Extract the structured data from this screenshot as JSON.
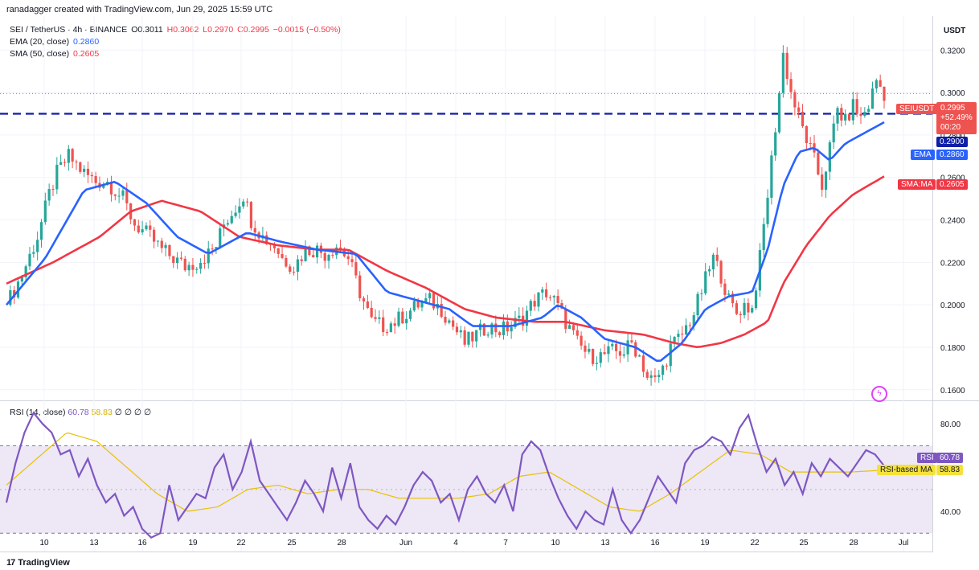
{
  "header": {
    "attribution": "ranadagger created with TradingView.com, Jun 29, 2025 15:59 UTC"
  },
  "legend": {
    "symbol_line": "SEI / TetherUS · 4h · BINANCE",
    "open": "O0.3011",
    "high": "H0.3062",
    "low": "L0.2970",
    "close": "C0.2995",
    "change": "−0.0015 (−0.50%)",
    "ema_label": "EMA (20, close)",
    "ema_value": "0.2860",
    "sma_label": "SMA (50, close)",
    "sma_value": "0.2605"
  },
  "rsi_legend": {
    "label": "RSI (14, close)",
    "rsi_value": "60.78",
    "ma_value": "58.83",
    "extra": "∅ ∅ ∅ ∅"
  },
  "axis": {
    "currency": "USDT"
  },
  "tags": {
    "symbol": "SEIUSDT",
    "price": "0.2995",
    "change": "+52.49%",
    "countdown": "00:20",
    "level": "0.2900",
    "ema_label": "EMA",
    "ema_value": "0.2860",
    "sma_label": "SMA:MA",
    "sma_value": "0.2605",
    "rsi_label": "RSI",
    "rsi_value": "60.78",
    "rsi_ma_label": "RSI-based MA",
    "rsi_ma_value": "58.83"
  },
  "footer": {
    "brand": "TradingView"
  },
  "colors": {
    "up": "#26a69a",
    "down": "#ef5350",
    "ema": "#2962ff",
    "sma": "#f23645",
    "level": "#0d1fa8",
    "rsi": "#7e57c2",
    "rsi_ma": "#e8c200",
    "rsi_band": "#ede7f6"
  },
  "chart_data": [
    {
      "type": "candlestick",
      "title": "SEI / TetherUS · 4h · BINANCE",
      "xlabel": "",
      "ylabel": "USDT",
      "ylim": [
        0.155,
        0.336
      ],
      "x_ticks": [
        "10",
        "13",
        "16",
        "19",
        "22",
        "25",
        "28",
        "Jun",
        "4",
        "7",
        "10",
        "13",
        "16",
        "19",
        "22",
        "25",
        "28",
        "Jul"
      ],
      "y_ticks": [
        "0.3200",
        "0.3000",
        "0.2800",
        "0.2600",
        "0.2400",
        "0.2200",
        "0.2000",
        "0.1800",
        "0.1600"
      ],
      "horizontal_level": 0.29,
      "last_close": 0.2995,
      "close_path": [
        [
          0,
          0.2
        ],
        [
          4,
          0.214
        ],
        [
          8,
          0.232
        ],
        [
          11,
          0.252
        ],
        [
          13,
          0.262
        ],
        [
          16,
          0.27
        ],
        [
          20,
          0.262
        ],
        [
          23,
          0.258
        ],
        [
          26,
          0.258
        ],
        [
          30,
          0.25
        ],
        [
          33,
          0.238
        ],
        [
          37,
          0.232
        ],
        [
          40,
          0.226
        ],
        [
          43,
          0.222
        ],
        [
          46,
          0.218
        ],
        [
          49,
          0.22
        ],
        [
          52,
          0.224
        ],
        [
          54,
          0.228
        ],
        [
          56,
          0.238
        ],
        [
          59,
          0.246
        ],
        [
          61,
          0.252
        ],
        [
          63,
          0.24
        ],
        [
          66,
          0.232
        ],
        [
          69,
          0.228
        ],
        [
          71,
          0.222
        ],
        [
          74,
          0.218
        ],
        [
          77,
          0.226
        ],
        [
          80,
          0.226
        ],
        [
          82,
          0.224
        ],
        [
          85,
          0.228
        ],
        [
          88,
          0.222
        ],
        [
          91,
          0.206
        ],
        [
          94,
          0.192
        ],
        [
          97,
          0.19
        ],
        [
          100,
          0.192
        ],
        [
          103,
          0.196
        ],
        [
          106,
          0.2
        ],
        [
          109,
          0.202
        ],
        [
          112,
          0.198
        ],
        [
          115,
          0.19
        ],
        [
          118,
          0.182
        ],
        [
          121,
          0.186
        ],
        [
          124,
          0.19
        ],
        [
          127,
          0.188
        ],
        [
          130,
          0.19
        ],
        [
          133,
          0.194
        ],
        [
          136,
          0.202
        ],
        [
          139,
          0.206
        ],
        [
          141,
          0.202
        ],
        [
          144,
          0.192
        ],
        [
          147,
          0.182
        ],
        [
          150,
          0.176
        ],
        [
          153,
          0.176
        ],
        [
          156,
          0.178
        ],
        [
          159,
          0.178
        ],
        [
          161,
          0.182
        ],
        [
          163,
          0.176
        ],
        [
          165,
          0.166
        ],
        [
          167,
          0.164
        ],
        [
          169,
          0.17
        ],
        [
          171,
          0.18
        ],
        [
          174,
          0.186
        ],
        [
          177,
          0.196
        ],
        [
          180,
          0.212
        ],
        [
          182,
          0.222
        ],
        [
          184,
          0.214
        ],
        [
          186,
          0.202
        ],
        [
          188,
          0.196
        ],
        [
          190,
          0.2
        ],
        [
          192,
          0.198
        ],
        [
          194,
          0.222
        ],
        [
          196,
          0.252
        ],
        [
          197,
          0.268
        ],
        [
          199,
          0.3
        ],
        [
          200,
          0.318
        ],
        [
          202,
          0.3
        ],
        [
          204,
          0.288
        ],
        [
          206,
          0.278
        ],
        [
          208,
          0.268
        ],
        [
          210,
          0.256
        ],
        [
          212,
          0.274
        ],
        [
          214,
          0.292
        ],
        [
          216,
          0.286
        ],
        [
          218,
          0.294
        ],
        [
          220,
          0.288
        ],
        [
          222,
          0.294
        ],
        [
          224,
          0.306
        ],
        [
          226,
          0.2995
        ]
      ],
      "ema_20_path": [
        [
          0,
          0.2
        ],
        [
          10,
          0.222
        ],
        [
          20,
          0.254
        ],
        [
          28,
          0.258
        ],
        [
          36,
          0.248
        ],
        [
          44,
          0.232
        ],
        [
          52,
          0.224
        ],
        [
          62,
          0.234
        ],
        [
          70,
          0.23
        ],
        [
          80,
          0.226
        ],
        [
          90,
          0.224
        ],
        [
          98,
          0.206
        ],
        [
          106,
          0.202
        ],
        [
          114,
          0.198
        ],
        [
          120,
          0.19
        ],
        [
          130,
          0.19
        ],
        [
          138,
          0.194
        ],
        [
          142,
          0.2
        ],
        [
          148,
          0.194
        ],
        [
          154,
          0.184
        ],
        [
          162,
          0.18
        ],
        [
          168,
          0.173
        ],
        [
          174,
          0.182
        ],
        [
          180,
          0.198
        ],
        [
          186,
          0.204
        ],
        [
          192,
          0.206
        ],
        [
          196,
          0.226
        ],
        [
          200,
          0.256
        ],
        [
          204,
          0.272
        ],
        [
          208,
          0.274
        ],
        [
          212,
          0.268
        ],
        [
          216,
          0.276
        ],
        [
          220,
          0.28
        ],
        [
          226,
          0.286
        ]
      ],
      "sma_50_path": [
        [
          0,
          0.21
        ],
        [
          12,
          0.22
        ],
        [
          24,
          0.232
        ],
        [
          32,
          0.244
        ],
        [
          40,
          0.249
        ],
        [
          50,
          0.244
        ],
        [
          60,
          0.232
        ],
        [
          70,
          0.228
        ],
        [
          80,
          0.226
        ],
        [
          88,
          0.226
        ],
        [
          98,
          0.216
        ],
        [
          108,
          0.208
        ],
        [
          118,
          0.198
        ],
        [
          126,
          0.194
        ],
        [
          136,
          0.192
        ],
        [
          144,
          0.192
        ],
        [
          154,
          0.188
        ],
        [
          164,
          0.186
        ],
        [
          172,
          0.182
        ],
        [
          178,
          0.18
        ],
        [
          184,
          0.182
        ],
        [
          190,
          0.186
        ],
        [
          196,
          0.192
        ],
        [
          200,
          0.21
        ],
        [
          206,
          0.228
        ],
        [
          212,
          0.242
        ],
        [
          218,
          0.252
        ],
        [
          226,
          0.2605
        ]
      ]
    },
    {
      "type": "line",
      "title": "RSI (14, close)",
      "ylim": [
        22,
        90
      ],
      "y_ticks": [
        "80.00",
        "40.00"
      ],
      "band": [
        30,
        70
      ],
      "midline": 50,
      "series": [
        {
          "name": "RSI",
          "points": [
            [
              0,
              44
            ],
            [
              3,
              62
            ],
            [
              6,
              76
            ],
            [
              9,
              85
            ],
            [
              12,
              80
            ],
            [
              15,
              76
            ],
            [
              18,
              66
            ],
            [
              21,
              68
            ],
            [
              24,
              56
            ],
            [
              27,
              64
            ],
            [
              30,
              52
            ],
            [
              33,
              44
            ],
            [
              36,
              48
            ],
            [
              39,
              38
            ],
            [
              42,
              42
            ],
            [
              45,
              32
            ],
            [
              48,
              28
            ],
            [
              51,
              30
            ],
            [
              54,
              52
            ],
            [
              57,
              36
            ],
            [
              60,
              42
            ],
            [
              63,
              48
            ],
            [
              66,
              46
            ],
            [
              69,
              60
            ],
            [
              72,
              66
            ],
            [
              75,
              50
            ],
            [
              78,
              58
            ],
            [
              81,
              72
            ],
            [
              84,
              54
            ],
            [
              87,
              48
            ],
            [
              90,
              42
            ],
            [
              93,
              36
            ],
            [
              96,
              44
            ],
            [
              99,
              54
            ],
            [
              102,
              48
            ],
            [
              105,
              40
            ],
            [
              108,
              60
            ],
            [
              111,
              46
            ],
            [
              114,
              62
            ],
            [
              117,
              42
            ],
            [
              120,
              36
            ],
            [
              123,
              32
            ],
            [
              126,
              38
            ],
            [
              129,
              34
            ],
            [
              132,
              42
            ],
            [
              135,
              52
            ],
            [
              138,
              58
            ],
            [
              141,
              54
            ],
            [
              144,
              44
            ],
            [
              147,
              48
            ],
            [
              150,
              36
            ],
            [
              153,
              50
            ],
            [
              156,
              56
            ],
            [
              159,
              48
            ],
            [
              162,
              44
            ],
            [
              165,
              52
            ],
            [
              168,
              40
            ],
            [
              171,
              66
            ],
            [
              174,
              72
            ],
            [
              177,
              68
            ],
            [
              180,
              56
            ],
            [
              183,
              46
            ],
            [
              186,
              38
            ],
            [
              189,
              32
            ],
            [
              192,
              40
            ],
            [
              195,
              36
            ],
            [
              198,
              34
            ],
            [
              201,
              50
            ],
            [
              204,
              36
            ],
            [
              207,
              30
            ],
            [
              210,
              36
            ],
            [
              213,
              46
            ],
            [
              216,
              56
            ],
            [
              219,
              50
            ],
            [
              222,
              44
            ],
            [
              225,
              62
            ],
            [
              228,
              68
            ],
            [
              231,
              70
            ],
            [
              234,
              74
            ],
            [
              237,
              72
            ],
            [
              240,
              66
            ],
            [
              243,
              78
            ],
            [
              246,
              84
            ],
            [
              249,
              70
            ],
            [
              252,
              58
            ],
            [
              255,
              64
            ],
            [
              258,
              52
            ],
            [
              261,
              58
            ],
            [
              264,
              48
            ],
            [
              267,
              62
            ],
            [
              270,
              56
            ],
            [
              273,
              64
            ],
            [
              276,
              60
            ],
            [
              279,
              56
            ],
            [
              282,
              62
            ],
            [
              285,
              68
            ],
            [
              288,
              66
            ],
            [
              291,
              60.78
            ]
          ]
        },
        {
          "name": "RSI-based MA",
          "points": [
            [
              0,
              52
            ],
            [
              10,
              64
            ],
            [
              20,
              76
            ],
            [
              30,
              72
            ],
            [
              40,
              60
            ],
            [
              50,
              48
            ],
            [
              60,
              40
            ],
            [
              70,
              42
            ],
            [
              80,
              50
            ],
            [
              90,
              52
            ],
            [
              100,
              48
            ],
            [
              110,
              50
            ],
            [
              120,
              50
            ],
            [
              130,
              46
            ],
            [
              140,
              46
            ],
            [
              150,
              46
            ],
            [
              160,
              48
            ],
            [
              170,
              56
            ],
            [
              180,
              58
            ],
            [
              190,
              50
            ],
            [
              200,
              42
            ],
            [
              210,
              40
            ],
            [
              220,
              48
            ],
            [
              230,
              58
            ],
            [
              240,
              68
            ],
            [
              250,
              66
            ],
            [
              260,
              58
            ],
            [
              270,
              58
            ],
            [
              280,
              58
            ],
            [
              291,
              58.83
            ]
          ]
        }
      ]
    }
  ]
}
